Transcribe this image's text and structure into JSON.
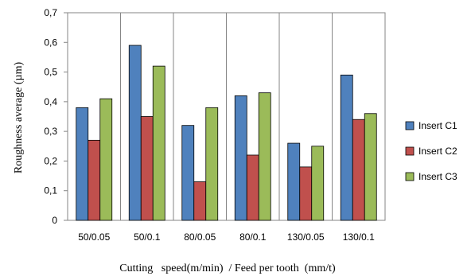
{
  "chart_data": {
    "type": "bar",
    "title": "",
    "xlabel": "Cutting   speed(m/min)  / Feed per tooth  (mm/t)",
    "ylabel": "Roughness  average  (µm)",
    "categories": [
      "50/0.05",
      "50/0.1",
      "80/0.05",
      "80/0.1",
      "130/0.05",
      "130/0.1"
    ],
    "ylim": [
      0,
      0.7
    ],
    "yticks": [
      "0",
      "0,1",
      "0,2",
      "0,3",
      "0,4",
      "0,5",
      "0,6",
      "0,7"
    ],
    "grid": false,
    "legend_position": "right",
    "series": [
      {
        "name": "Insert C1",
        "color": "#4F81BD",
        "values": [
          0.38,
          0.59,
          0.32,
          0.42,
          0.26,
          0.49
        ]
      },
      {
        "name": "Insert C2",
        "color": "#C0504D",
        "values": [
          0.27,
          0.35,
          0.13,
          0.22,
          0.18,
          0.34
        ]
      },
      {
        "name": "Insert C3",
        "color": "#9BBB59",
        "values": [
          0.41,
          0.52,
          0.38,
          0.43,
          0.25,
          0.36
        ]
      }
    ]
  }
}
